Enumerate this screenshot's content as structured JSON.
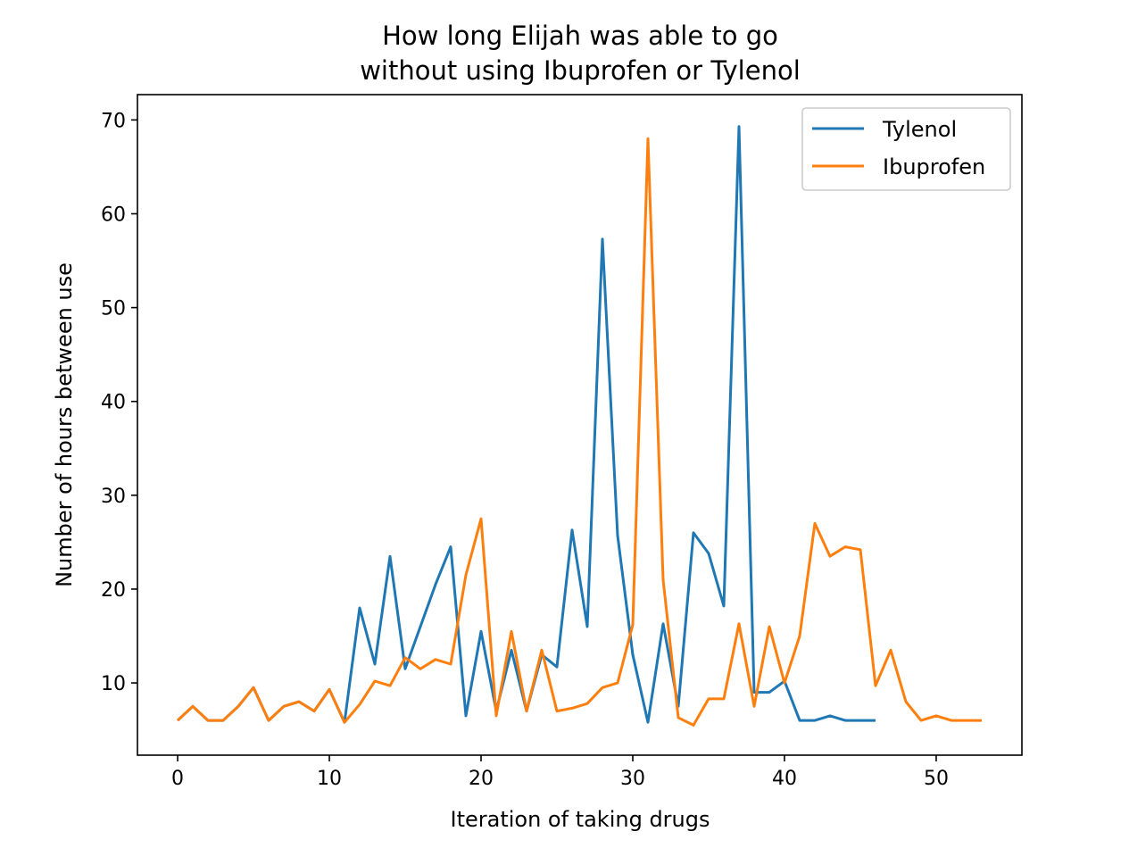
{
  "chart_data": {
    "type": "line",
    "title_lines": [
      "How long Elijah was able to go",
      "without using Ibuprofen or Tylenol"
    ],
    "xlabel": "Iteration of taking drugs",
    "ylabel": "Number of hours between use",
    "xlim": [
      -2.65,
      55.65
    ],
    "ylim": [
      2.3,
      72.7
    ],
    "x_ticks": [
      0,
      10,
      20,
      30,
      40,
      50
    ],
    "y_ticks": [
      10,
      20,
      30,
      40,
      50,
      60,
      70
    ],
    "grid": false,
    "legend_position": "top-right",
    "series": [
      {
        "name": "Tylenol",
        "color": "#1f77b4",
        "x": [
          0,
          1,
          2,
          3,
          4,
          5,
          6,
          7,
          8,
          9,
          10,
          11,
          12,
          13,
          14,
          15,
          16,
          17,
          18,
          19,
          20,
          21,
          22,
          23,
          24,
          25,
          26,
          27,
          28,
          29,
          30,
          31,
          32,
          33,
          34,
          35,
          36,
          37,
          38,
          39,
          40,
          41,
          42,
          43,
          44,
          45,
          46
        ],
        "y": [
          6,
          7.5,
          6,
          6,
          7.5,
          9.5,
          6,
          7.5,
          8,
          7,
          9.3,
          5.8,
          18,
          12,
          23.5,
          11.5,
          16,
          20.5,
          24.5,
          6.5,
          15.5,
          7,
          13.5,
          7,
          13,
          11.7,
          26.3,
          16,
          57.3,
          25.7,
          13,
          5.8,
          16.3,
          7.5,
          26,
          23.8,
          18.2,
          69.3,
          9,
          9,
          10.2,
          6,
          6,
          6.5,
          6,
          6,
          6
        ]
      },
      {
        "name": "Ibuprofen",
        "color": "#ff7f0e",
        "x": [
          0,
          1,
          2,
          3,
          4,
          5,
          6,
          7,
          8,
          9,
          10,
          11,
          12,
          13,
          14,
          15,
          16,
          17,
          18,
          19,
          20,
          21,
          22,
          23,
          24,
          25,
          26,
          27,
          28,
          29,
          30,
          31,
          32,
          33,
          34,
          35,
          36,
          37,
          38,
          39,
          40,
          41,
          42,
          43,
          44,
          45,
          46,
          47,
          48,
          49,
          50,
          51,
          52,
          53
        ],
        "y": [
          6,
          7.5,
          6,
          6,
          7.5,
          9.5,
          6,
          7.5,
          8,
          7,
          9.3,
          5.8,
          7.7,
          10.2,
          9.7,
          12.7,
          11.5,
          12.5,
          12,
          21.5,
          27.5,
          6.5,
          15.5,
          7,
          13.5,
          7,
          7.3,
          7.8,
          9.5,
          10,
          16.2,
          68,
          21,
          6.3,
          5.5,
          8.3,
          8.3,
          16.3,
          7.5,
          16,
          10,
          15,
          27,
          23.5,
          24.5,
          24.2,
          9.7,
          13.5,
          8,
          6,
          6.5,
          6,
          6,
          6
        ]
      }
    ]
  }
}
